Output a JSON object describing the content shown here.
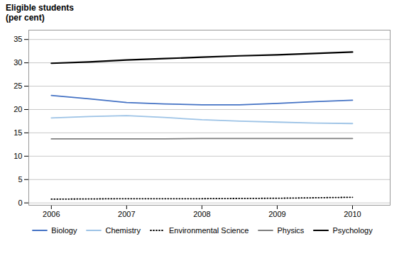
{
  "chart_data": {
    "type": "line",
    "ylabel": "Eligible students\n(per cent)",
    "x": [
      2006,
      2006.5,
      2007,
      2007.5,
      2008,
      2008.5,
      2009,
      2009.5,
      2010
    ],
    "series": [
      {
        "name": "Biology",
        "color": "#4472C4",
        "line_style": "solid",
        "values": [
          23.0,
          22.3,
          21.5,
          21.2,
          21.0,
          21.0,
          21.3,
          21.7,
          22.0
        ]
      },
      {
        "name": "Chemistry",
        "color": "#9DC3E6",
        "line_style": "solid",
        "values": [
          18.2,
          18.5,
          18.7,
          18.3,
          17.8,
          17.5,
          17.3,
          17.1,
          17.0
        ]
      },
      {
        "name": "Environmental Science",
        "color": "#000000",
        "line_style": "dotted",
        "values": [
          0.8,
          0.85,
          0.9,
          0.9,
          0.9,
          0.95,
          1.0,
          1.1,
          1.2
        ]
      },
      {
        "name": "Physics",
        "color": "#7F7F7F",
        "line_style": "solid",
        "values": [
          13.7,
          13.7,
          13.7,
          13.7,
          13.8,
          13.8,
          13.8,
          13.8,
          13.8
        ]
      },
      {
        "name": "Psychology",
        "color": "#000000",
        "line_style": "solid",
        "values": [
          29.9,
          30.2,
          30.6,
          30.9,
          31.2,
          31.5,
          31.7,
          32.0,
          32.3
        ]
      }
    ],
    "xlim": [
      2005.7,
      2010.5
    ],
    "xticks": [
      2006,
      2007,
      2008,
      2009,
      2010
    ],
    "ylim": [
      -0.5,
      37
    ],
    "yticks": [
      0,
      5,
      10,
      15,
      20,
      25,
      30,
      35
    ],
    "grid": "y",
    "legend": "bottom"
  }
}
